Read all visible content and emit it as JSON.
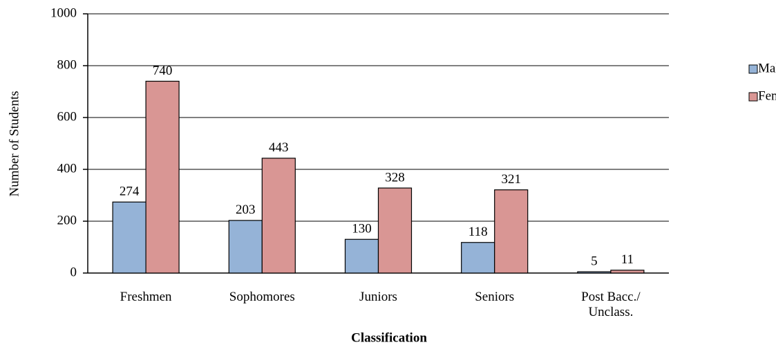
{
  "chart_data": {
    "type": "bar",
    "x_label": "Classification",
    "y_label": "Number of Students",
    "categories": [
      "Freshmen",
      "Sophomores",
      "Juniors",
      "Seniors",
      "Post Bacc./ Unclass."
    ],
    "series": [
      {
        "name": "Male",
        "color": "#95b3d7",
        "values": [
          274,
          203,
          130,
          118,
          5
        ]
      },
      {
        "name": "Female",
        "color": "#d99694",
        "values": [
          740,
          443,
          328,
          321,
          11
        ]
      }
    ],
    "ylim": [
      0,
      1000
    ],
    "yticks": [
      0,
      200,
      400,
      600,
      800,
      1000
    ],
    "grid": true,
    "legend": "right"
  }
}
